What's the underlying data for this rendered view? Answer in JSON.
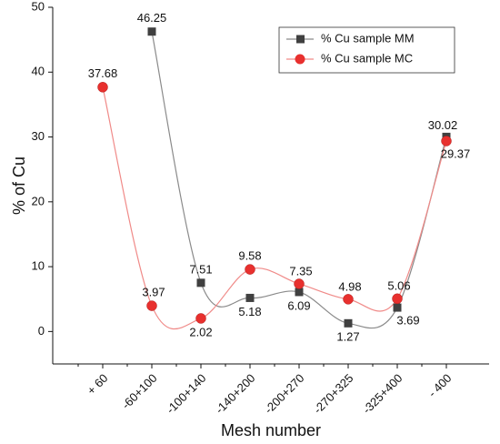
{
  "chart_data": {
    "type": "line",
    "x_label": "Mesh number",
    "y_label": "% of Cu",
    "categories": [
      "+ 60",
      "-60+100",
      "-100+140",
      "-140+200",
      "-200+270",
      "-270+325",
      "-325+400",
      "- 400"
    ],
    "series": [
      {
        "name": "% Cu sample MM",
        "color": "#404040",
        "line_color": "#8a8a8a",
        "marker": "square",
        "values": [
          null,
          46.25,
          7.51,
          5.18,
          6.09,
          1.27,
          3.69,
          30.02
        ]
      },
      {
        "name": "% Cu sample MC",
        "color": "#e8302e",
        "line_color": "#f08a88",
        "marker": "circle",
        "values": [
          37.68,
          3.97,
          2.02,
          9.58,
          7.35,
          4.98,
          5.06,
          29.37
        ]
      }
    ],
    "ylim": [
      -5,
      50
    ],
    "yticks": [
      0,
      10,
      20,
      30,
      40,
      50
    ],
    "legend": "upper right"
  }
}
